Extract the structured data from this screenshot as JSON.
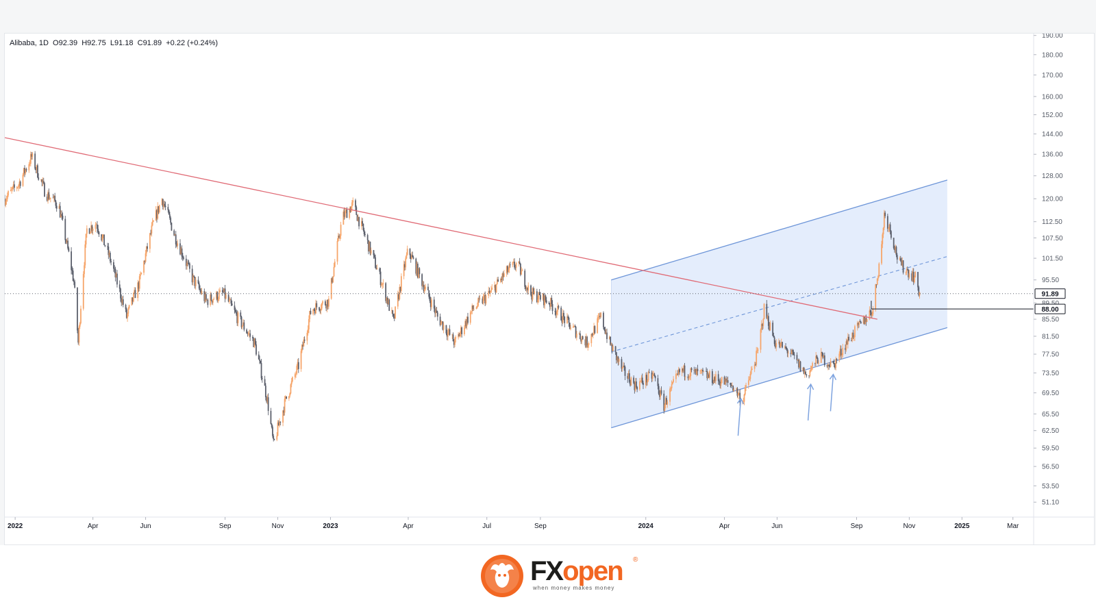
{
  "legend": {
    "symbol": "Alibaba",
    "interval": "1D",
    "open": "O92.39",
    "high": "H92.75",
    "low": "L91.18",
    "close": "C91.89",
    "change": "+0.22 (+0.24%)"
  },
  "brand": {
    "word_fx": "FX",
    "word_open": "open",
    "tagline": "when money makes money",
    "registered": "®",
    "primary_color": "#f26722"
  },
  "chart_data": {
    "type": "candlestick",
    "title": "",
    "xlabel": "",
    "ylabel": "",
    "ylim": [
      49,
      191
    ],
    "x_range": [
      "2021-12-20",
      "2025-03-25"
    ],
    "scale": "log",
    "grid": false,
    "y_ticks": [
      "190.00",
      "180.00",
      "170.00",
      "160.00",
      "152.00",
      "144.00",
      "136.00",
      "128.00",
      "120.00",
      "112.50",
      "107.50",
      "101.50",
      "95.50",
      "89.50",
      "85.50",
      "81.50",
      "77.50",
      "73.50",
      "69.50",
      "65.50",
      "62.50",
      "59.50",
      "56.50",
      "53.50",
      "51.10"
    ],
    "x_ticks": [
      {
        "label": "2022",
        "date": "2022-01-01",
        "bold": true
      },
      {
        "label": "Apr",
        "date": "2022-04-01"
      },
      {
        "label": "Jun",
        "date": "2022-06-01"
      },
      {
        "label": "Sep",
        "date": "2022-09-01"
      },
      {
        "label": "Nov",
        "date": "2022-11-01"
      },
      {
        "label": "2023",
        "date": "2023-01-01",
        "bold": true
      },
      {
        "label": "Apr",
        "date": "2023-04-01"
      },
      {
        "label": "Jul",
        "date": "2023-07-01"
      },
      {
        "label": "Sep",
        "date": "2023-09-01"
      },
      {
        "label": "2024",
        "date": "2024-01-01",
        "bold": true
      },
      {
        "label": "Apr",
        "date": "2024-04-01"
      },
      {
        "label": "Jun",
        "date": "2024-06-01"
      },
      {
        "label": "Sep",
        "date": "2024-09-01"
      },
      {
        "label": "Nov",
        "date": "2024-11-01"
      },
      {
        "label": "2025",
        "date": "2025-01-01",
        "bold": true
      },
      {
        "label": "Mar",
        "date": "2025-03-01"
      }
    ],
    "price_path": [
      [
        "2021-12-20",
        120
      ],
      [
        "2022-01-05",
        125
      ],
      [
        "2022-01-20",
        135
      ],
      [
        "2022-02-05",
        122
      ],
      [
        "2022-02-20",
        118
      ],
      [
        "2022-03-10",
        95
      ],
      [
        "2022-03-15",
        80
      ],
      [
        "2022-03-25",
        110
      ],
      [
        "2022-04-05",
        112
      ],
      [
        "2022-04-20",
        102
      ],
      [
        "2022-05-10",
        86
      ],
      [
        "2022-05-25",
        95
      ],
      [
        "2022-06-10",
        112
      ],
      [
        "2022-06-20",
        120
      ],
      [
        "2022-07-05",
        108
      ],
      [
        "2022-07-25",
        96
      ],
      [
        "2022-08-10",
        90
      ],
      [
        "2022-08-30",
        92
      ],
      [
        "2022-09-15",
        86
      ],
      [
        "2022-10-05",
        80
      ],
      [
        "2022-10-20",
        68
      ],
      [
        "2022-10-27",
        60
      ],
      [
        "2022-11-10",
        68
      ],
      [
        "2022-11-25",
        75
      ],
      [
        "2022-12-10",
        88
      ],
      [
        "2022-12-30",
        90
      ],
      [
        "2023-01-15",
        114
      ],
      [
        "2023-01-27",
        118
      ],
      [
        "2023-02-10",
        108
      ],
      [
        "2023-03-01",
        95
      ],
      [
        "2023-03-15",
        85
      ],
      [
        "2023-04-01",
        104
      ],
      [
        "2023-04-15",
        96
      ],
      [
        "2023-05-05",
        86
      ],
      [
        "2023-05-25",
        80
      ],
      [
        "2023-06-15",
        88
      ],
      [
        "2023-07-05",
        92
      ],
      [
        "2023-07-25",
        98
      ],
      [
        "2023-08-05",
        100
      ],
      [
        "2023-08-20",
        92
      ],
      [
        "2023-09-10",
        90
      ],
      [
        "2023-10-05",
        84
      ],
      [
        "2023-10-25",
        80
      ],
      [
        "2023-11-10",
        86
      ],
      [
        "2023-11-20",
        80
      ],
      [
        "2023-12-05",
        74
      ],
      [
        "2023-12-20",
        71
      ],
      [
        "2024-01-10",
        73
      ],
      [
        "2024-01-22",
        67
      ],
      [
        "2024-02-10",
        74
      ],
      [
        "2024-03-10",
        73
      ],
      [
        "2024-04-10",
        71
      ],
      [
        "2024-04-22",
        68
      ],
      [
        "2024-05-10",
        78
      ],
      [
        "2024-05-17",
        88
      ],
      [
        "2024-05-30",
        80
      ],
      [
        "2024-06-15",
        78
      ],
      [
        "2024-07-05",
        73
      ],
      [
        "2024-07-20",
        77
      ],
      [
        "2024-08-05",
        75
      ],
      [
        "2024-08-20",
        80
      ],
      [
        "2024-09-05",
        84
      ],
      [
        "2024-09-20",
        88
      ],
      [
        "2024-09-30",
        105
      ],
      [
        "2024-10-03",
        115
      ],
      [
        "2024-10-10",
        110
      ],
      [
        "2024-10-20",
        100
      ],
      [
        "2024-10-30",
        98
      ],
      [
        "2024-11-08",
        96
      ],
      [
        "2024-11-13",
        91.89
      ]
    ],
    "last_price": {
      "value": 91.89,
      "label": "91.89",
      "color": "#131722"
    },
    "level": {
      "value": 88.0,
      "label": "88.00",
      "from": "2024-09-18"
    },
    "trendline": {
      "p1": [
        "2021-12-20",
        142.5
      ],
      "p2": [
        "2024-09-25",
        85.5
      ],
      "color": "#e06a75"
    },
    "channel": {
      "start": "2023-11-22",
      "end": "2024-12-15",
      "upper": [
        95.5,
        126.5
      ],
      "lower": [
        63.0,
        83.5
      ],
      "mid": [
        78.0,
        102.0
      ],
      "fill": "#dbe7fb",
      "line": "#6d95d8"
    },
    "arrows": [
      {
        "date": "2024-04-20",
        "tip": 68.4,
        "tail": 61.6
      },
      {
        "date": "2024-07-10",
        "tip": 71.2,
        "tail": 64.3
      },
      {
        "date": "2024-08-05",
        "tip": 73.2,
        "tail": 66.0
      }
    ],
    "colors": {
      "up": "#f6a56a",
      "down": "#5b5f6b"
    }
  }
}
